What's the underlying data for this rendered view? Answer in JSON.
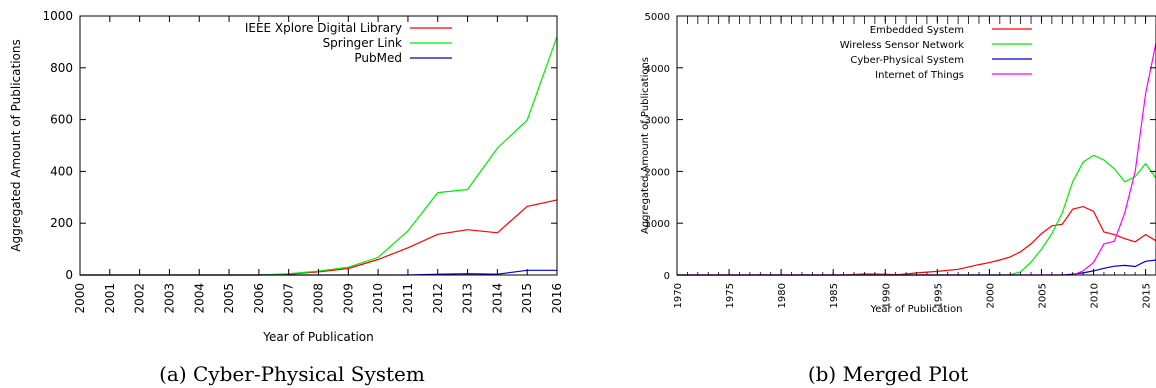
{
  "chart_data": [
    {
      "type": "line",
      "caption": "(a) Cyber-Physical System",
      "xlabel": "Year of Publication",
      "ylabel": "Aggregated Amount of Publications",
      "xlim": [
        2000,
        2016
      ],
      "ylim": [
        0,
        1000
      ],
      "x_ticks": [
        "2000",
        "2001",
        "2002",
        "2003",
        "2004",
        "2005",
        "2006",
        "2007",
        "2008",
        "2009",
        "2010",
        "2011",
        "2012",
        "2013",
        "2014",
        "2015",
        "2016"
      ],
      "y_ticks": [
        "0",
        "200",
        "400",
        "600",
        "800",
        "1000"
      ],
      "legend_position": "top-right",
      "x": [
        2000,
        2001,
        2002,
        2003,
        2004,
        2005,
        2006,
        2007,
        2008,
        2009,
        2010,
        2011,
        2012,
        2013,
        2014,
        2015,
        2016
      ],
      "series": [
        {
          "name": "IEEE Xplore Digital Library",
          "color": "#ff0000",
          "values": [
            0,
            0,
            0,
            0,
            0,
            0,
            0,
            3,
            12,
            25,
            60,
            105,
            157,
            175,
            163,
            265,
            290
          ]
        },
        {
          "name": "Springer Link",
          "color": "#00ee00",
          "values": [
            0,
            0,
            0,
            0,
            0,
            0,
            0,
            5,
            15,
            30,
            68,
            170,
            318,
            330,
            490,
            598,
            920
          ]
        },
        {
          "name": "PubMed",
          "color": "#0000cc",
          "values": [
            0,
            0,
            0,
            0,
            0,
            0,
            0,
            0,
            0,
            0,
            0,
            0,
            3,
            5,
            3,
            18,
            18
          ]
        }
      ]
    },
    {
      "type": "line",
      "caption": "(b) Merged Plot",
      "xlabel": "Year of Publication",
      "ylabel": "Aggregated Amount of Publications",
      "xlim": [
        1970,
        2016
      ],
      "ylim": [
        0,
        5000
      ],
      "x_ticks": [
        "1970",
        "1975",
        "1980",
        "1985",
        "1990",
        "1995",
        "2000",
        "2005",
        "2010",
        "2015"
      ],
      "x_tick_values": [
        1970,
        1975,
        1980,
        1985,
        1990,
        1995,
        2000,
        2005,
        2010,
        2015
      ],
      "y_ticks": [
        "0",
        "1000",
        "2000",
        "3000",
        "4000",
        "5000"
      ],
      "legend_position": "top-right",
      "series": [
        {
          "name": "Embedded System",
          "color": "#ff0000",
          "points": [
            [
              1970,
              0
            ],
            [
              1986,
              0
            ],
            [
              1987,
              10
            ],
            [
              1988,
              20
            ],
            [
              1990,
              15
            ],
            [
              1991,
              5
            ],
            [
              1992,
              20
            ],
            [
              1993,
              40
            ],
            [
              1995,
              70
            ],
            [
              1997,
              110
            ],
            [
              1999,
              200
            ],
            [
              2000,
              240
            ],
            [
              2001,
              290
            ],
            [
              2002,
              350
            ],
            [
              2003,
              450
            ],
            [
              2004,
              600
            ],
            [
              2005,
              800
            ],
            [
              2006,
              950
            ],
            [
              2007,
              980
            ],
            [
              2008,
              1270
            ],
            [
              2009,
              1320
            ],
            [
              2010,
              1230
            ],
            [
              2011,
              830
            ],
            [
              2012,
              780
            ],
            [
              2013,
              700
            ],
            [
              2014,
              640
            ],
            [
              2015,
              780
            ],
            [
              2016,
              660
            ]
          ]
        },
        {
          "name": "Wireless Sensor Network",
          "color": "#00ee00",
          "points": [
            [
              1970,
              0
            ],
            [
              2001,
              0
            ],
            [
              2002,
              5
            ],
            [
              2003,
              60
            ],
            [
              2004,
              250
            ],
            [
              2005,
              500
            ],
            [
              2006,
              800
            ],
            [
              2007,
              1200
            ],
            [
              2008,
              1800
            ],
            [
              2009,
              2180
            ],
            [
              2010,
              2310
            ],
            [
              2011,
              2220
            ],
            [
              2012,
              2050
            ],
            [
              2013,
              1800
            ],
            [
              2014,
              1900
            ],
            [
              2015,
              2150
            ],
            [
              2016,
              1870
            ]
          ]
        },
        {
          "name": "Cyber-Physical System",
          "color": "#0000cc",
          "points": [
            [
              1970,
              0
            ],
            [
              2007,
              0
            ],
            [
              2008,
              15
            ],
            [
              2009,
              40
            ],
            [
              2010,
              80
            ],
            [
              2011,
              130
            ],
            [
              2012,
              170
            ],
            [
              2013,
              185
            ],
            [
              2014,
              165
            ],
            [
              2015,
              265
            ],
            [
              2016,
              290
            ]
          ]
        },
        {
          "name": "Internet of Things",
          "color": "#ff00ff",
          "points": [
            [
              1970,
              0
            ],
            [
              2008,
              0
            ],
            [
              2009,
              80
            ],
            [
              2010,
              240
            ],
            [
              2011,
              600
            ],
            [
              2012,
              650
            ],
            [
              2013,
              1200
            ],
            [
              2014,
              2000
            ],
            [
              2015,
              3500
            ],
            [
              2016,
              4480
            ]
          ]
        }
      ]
    }
  ]
}
